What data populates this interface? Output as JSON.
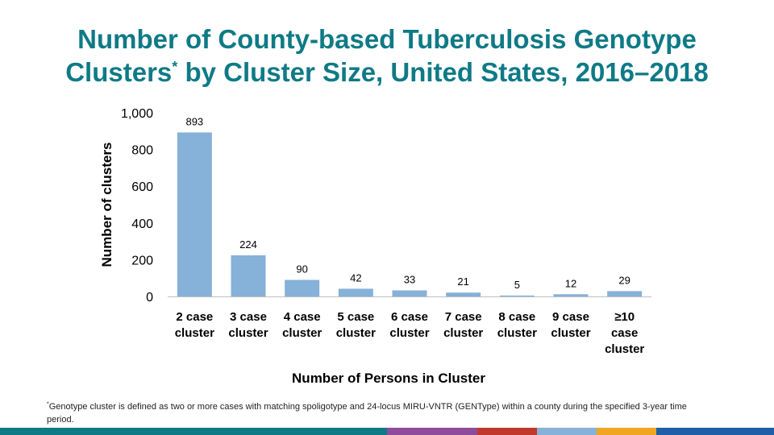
{
  "title": {
    "line1": "Number of County-based Tuberculosis Genotype",
    "line2_a": "Clusters",
    "line2_sup": "*",
    "line2_b": " by Cluster Size, United States, 2016–2018"
  },
  "footnote": {
    "marker": "*",
    "text": "Genotype  cluster is defined as two or more cases with matching spoligotype and 24-locus MIRU-VNTR (GENType)  within a county during the specified 3-year time period."
  },
  "colors": {
    "title": "#0e7a86",
    "bar": "#86b1d8",
    "bottom_bar": [
      "#0e7a86",
      "#0e7a86",
      "#0e7a86",
      "#0e7a86",
      "#8e4a9b",
      "#c0392b",
      "#86b1d8",
      "#f0a623",
      "#1e5fa8"
    ]
  },
  "chart_data": {
    "type": "bar",
    "categories": [
      [
        "2 case",
        "cluster"
      ],
      [
        "3 case",
        "cluster"
      ],
      [
        "4 case",
        "cluster"
      ],
      [
        "5 case",
        "cluster"
      ],
      [
        "6 case",
        "cluster"
      ],
      [
        "7 case",
        "cluster"
      ],
      [
        "8 case",
        "cluster"
      ],
      [
        "9 case",
        "cluster"
      ],
      [
        "≥10",
        "case",
        "cluster"
      ]
    ],
    "values": [
      893,
      224,
      90,
      42,
      33,
      21,
      5,
      12,
      29
    ],
    "data_labels": [
      "893",
      "224",
      "90",
      "42",
      "33",
      "21",
      "5",
      "12",
      "29"
    ],
    "xlabel": "Number of Persons in Cluster",
    "ylabel": "Number of clusters",
    "ylim": [
      0,
      1000
    ],
    "yticks": [
      0,
      200,
      400,
      600,
      800,
      1000
    ],
    "ytick_labels": [
      "0",
      "200",
      "400",
      "600",
      "800",
      "1,000"
    ],
    "grid": false,
    "legend": "none"
  }
}
